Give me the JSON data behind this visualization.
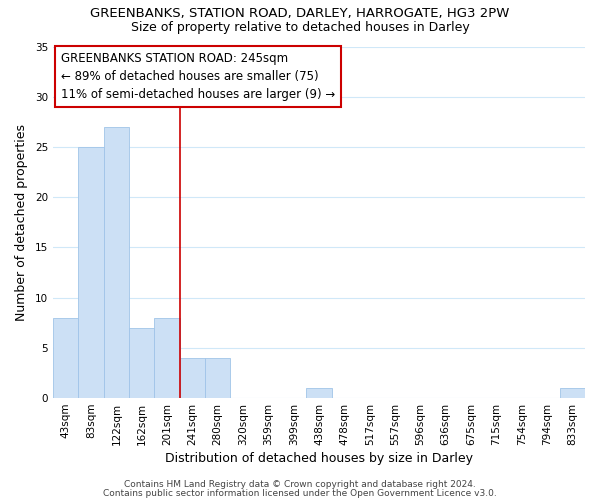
{
  "title": "GREENBANKS, STATION ROAD, DARLEY, HARROGATE, HG3 2PW",
  "subtitle": "Size of property relative to detached houses in Darley",
  "xlabel": "Distribution of detached houses by size in Darley",
  "ylabel": "Number of detached properties",
  "bin_labels": [
    "43sqm",
    "83sqm",
    "122sqm",
    "162sqm",
    "201sqm",
    "241sqm",
    "280sqm",
    "320sqm",
    "359sqm",
    "399sqm",
    "438sqm",
    "478sqm",
    "517sqm",
    "557sqm",
    "596sqm",
    "636sqm",
    "675sqm",
    "715sqm",
    "754sqm",
    "794sqm",
    "833sqm"
  ],
  "bar_heights": [
    8,
    25,
    27,
    7,
    8,
    4,
    4,
    0,
    0,
    0,
    1,
    0,
    0,
    0,
    0,
    0,
    0,
    0,
    0,
    0,
    1
  ],
  "bar_color": "#cce0f5",
  "bar_edge_color": "#a0c4e8",
  "red_line_bin_index": 4.5,
  "ylim": [
    0,
    35
  ],
  "yticks": [
    0,
    5,
    10,
    15,
    20,
    25,
    30,
    35
  ],
  "annotation_title": "GREENBANKS STATION ROAD: 245sqm",
  "annotation_line1": "← 89% of detached houses are smaller (75)",
  "annotation_line2": "11% of semi-detached houses are larger (9) →",
  "footer_line1": "Contains HM Land Registry data © Crown copyright and database right 2024.",
  "footer_line2": "Contains public sector information licensed under the Open Government Licence v3.0.",
  "background_color": "#ffffff",
  "grid_color": "#d0e8f8",
  "title_fontsize": 9.5,
  "subtitle_fontsize": 9,
  "annotation_fontsize": 8.5,
  "axis_label_fontsize": 9,
  "tick_fontsize": 7.5,
  "footer_fontsize": 6.5
}
